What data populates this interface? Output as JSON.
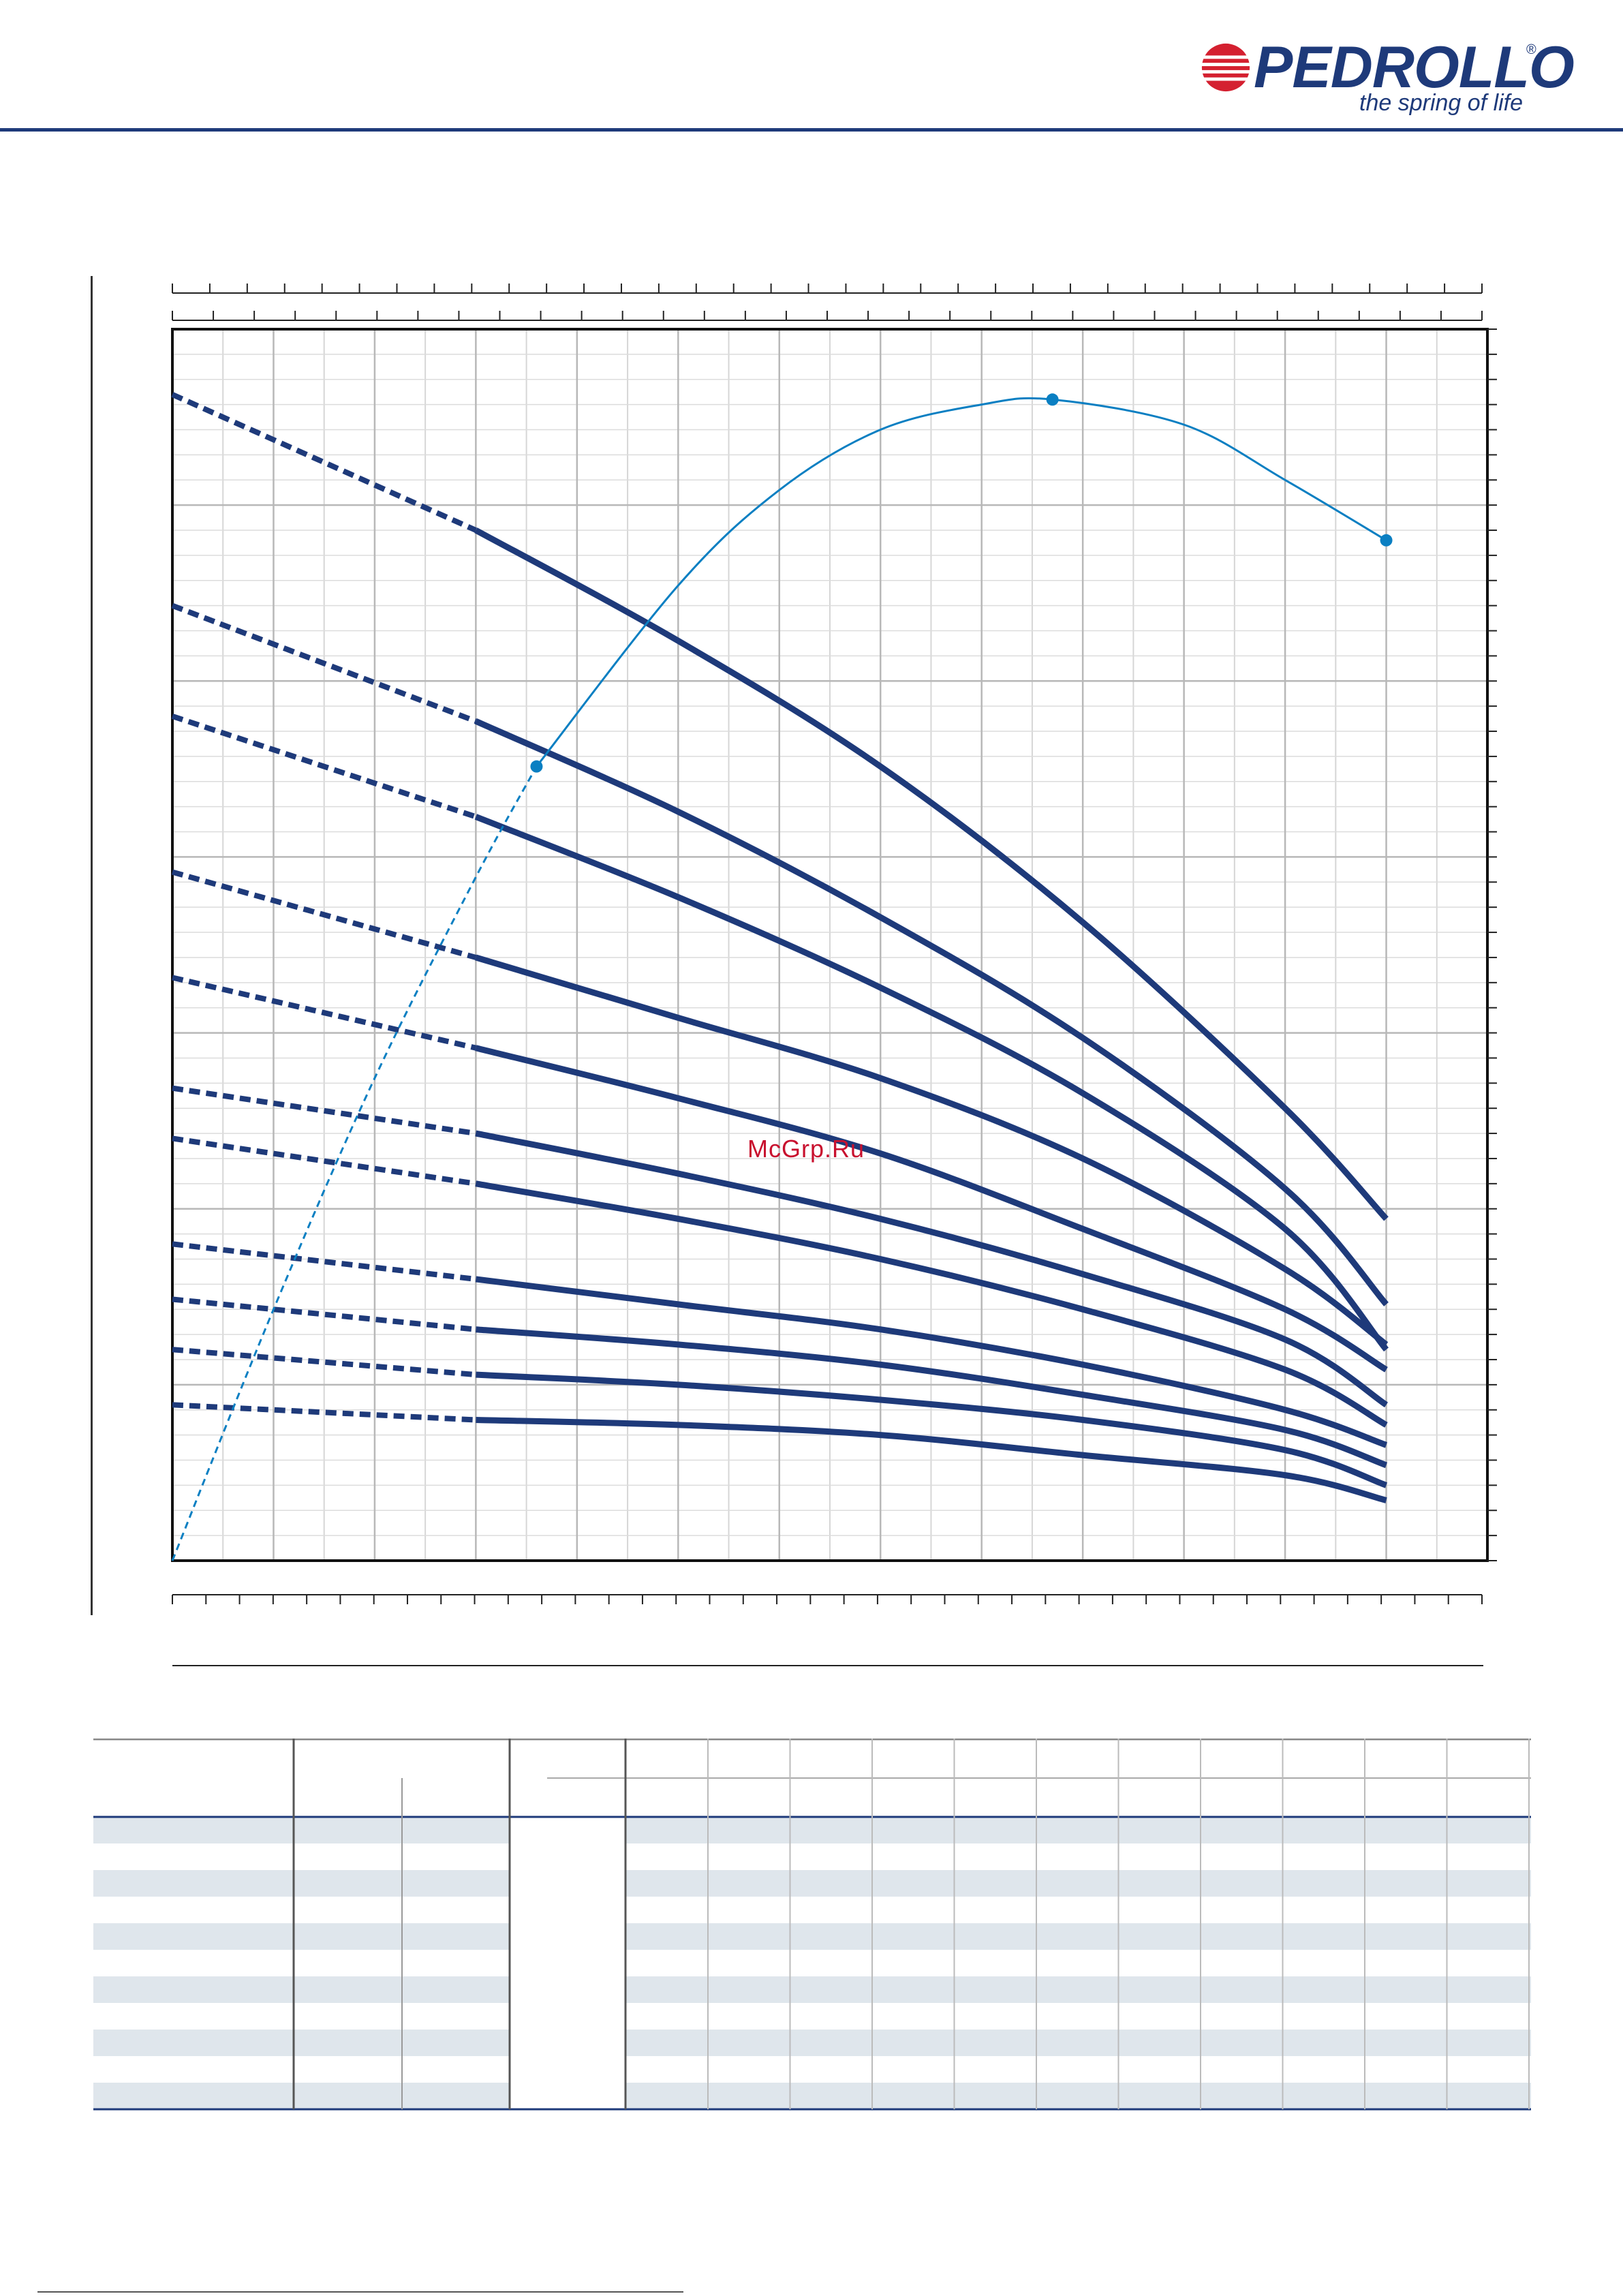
{
  "brand": {
    "name": "PEDROLLO",
    "registered": "®",
    "tagline": "the spring of life",
    "colors": {
      "navy": "#1e3a7a",
      "red": "#d42030"
    }
  },
  "watermark": {
    "text": "McGrp.Ru",
    "color": "#c8102e"
  },
  "chart_data": {
    "type": "line",
    "title": "",
    "xlabel": "",
    "ylabel": "",
    "grid": true,
    "xlim": [
      0,
      13
    ],
    "ylim": [
      0,
      24.5
    ],
    "curve_color": "#1e3a7a",
    "efficiency_color": "#0a7fc2",
    "operating_range_x": [
      3,
      12
    ],
    "series": [
      {
        "points": [
          [
            0,
            23.2
          ],
          [
            3,
            20.5
          ],
          [
            5,
            18.3
          ],
          [
            7,
            15.8
          ],
          [
            9,
            12.7
          ],
          [
            11,
            9.0
          ],
          [
            12,
            6.8
          ]
        ]
      },
      {
        "points": [
          [
            0,
            19.0
          ],
          [
            3,
            16.7
          ],
          [
            5,
            14.9
          ],
          [
            7,
            12.8
          ],
          [
            9,
            10.4
          ],
          [
            11,
            7.4
          ],
          [
            12,
            5.1
          ]
        ]
      },
      {
        "points": [
          [
            0,
            16.8
          ],
          [
            3,
            14.8
          ],
          [
            5,
            13.2
          ],
          [
            7,
            11.4
          ],
          [
            9,
            9.3
          ],
          [
            11,
            6.6
          ],
          [
            12,
            4.2
          ]
        ]
      },
      {
        "points": [
          [
            0,
            13.7
          ],
          [
            3,
            12.0
          ],
          [
            5,
            10.8
          ],
          [
            7,
            9.6
          ],
          [
            9,
            8.0
          ],
          [
            11,
            5.8
          ],
          [
            12,
            4.3
          ]
        ]
      },
      {
        "points": [
          [
            0,
            11.6
          ],
          [
            3,
            10.2
          ],
          [
            5,
            9.2
          ],
          [
            7,
            8.1
          ],
          [
            9,
            6.6
          ],
          [
            11,
            5.0
          ],
          [
            12,
            3.8
          ]
        ]
      },
      {
        "points": [
          [
            0,
            9.4
          ],
          [
            3,
            8.5
          ],
          [
            5,
            7.7
          ],
          [
            7,
            6.8
          ],
          [
            9,
            5.7
          ],
          [
            11,
            4.4
          ],
          [
            12,
            3.1
          ]
        ]
      },
      {
        "points": [
          [
            0,
            8.4
          ],
          [
            3,
            7.5
          ],
          [
            5,
            6.8
          ],
          [
            7,
            6.0
          ],
          [
            9,
            5.0
          ],
          [
            11,
            3.8
          ],
          [
            12,
            2.7
          ]
        ]
      },
      {
        "points": [
          [
            0,
            6.3
          ],
          [
            3,
            5.6
          ],
          [
            5,
            5.1
          ],
          [
            7,
            4.6
          ],
          [
            9,
            3.9
          ],
          [
            11,
            3.0
          ],
          [
            12,
            2.3
          ]
        ]
      },
      {
        "points": [
          [
            0,
            5.2
          ],
          [
            3,
            4.6
          ],
          [
            5,
            4.3
          ],
          [
            7,
            3.9
          ],
          [
            9,
            3.3
          ],
          [
            11,
            2.6
          ],
          [
            12,
            1.9
          ]
        ]
      },
      {
        "points": [
          [
            0,
            4.2
          ],
          [
            3,
            3.7
          ],
          [
            5,
            3.5
          ],
          [
            7,
            3.2
          ],
          [
            9,
            2.8
          ],
          [
            11,
            2.2
          ],
          [
            12,
            1.5
          ]
        ]
      },
      {
        "points": [
          [
            0,
            3.1
          ],
          [
            3,
            2.8
          ],
          [
            5,
            2.7
          ],
          [
            7,
            2.5
          ],
          [
            9,
            2.1
          ],
          [
            11,
            1.7
          ],
          [
            12,
            1.2
          ]
        ]
      }
    ],
    "efficiency_curve": {
      "points": [
        [
          0,
          0
        ],
        [
          1,
          5.0
        ],
        [
          2,
          9.6
        ],
        [
          3,
          13.6
        ],
        [
          3.6,
          15.8
        ],
        [
          5,
          19.4
        ],
        [
          6,
          21.3
        ],
        [
          7,
          22.5
        ],
        [
          8,
          23.0
        ],
        [
          8.7,
          23.1
        ],
        [
          10,
          22.6
        ],
        [
          11,
          21.5
        ],
        [
          12,
          20.3
        ]
      ],
      "markers": [
        [
          3.6,
          15.8
        ],
        [
          8.7,
          23.1
        ],
        [
          12,
          20.3
        ]
      ]
    }
  },
  "table": {
    "header_rows": 2,
    "body_rows": 11,
    "row_fills": [
      "#dfe6ec",
      "#ffffff"
    ],
    "rule_color": "#1e3a7a"
  }
}
